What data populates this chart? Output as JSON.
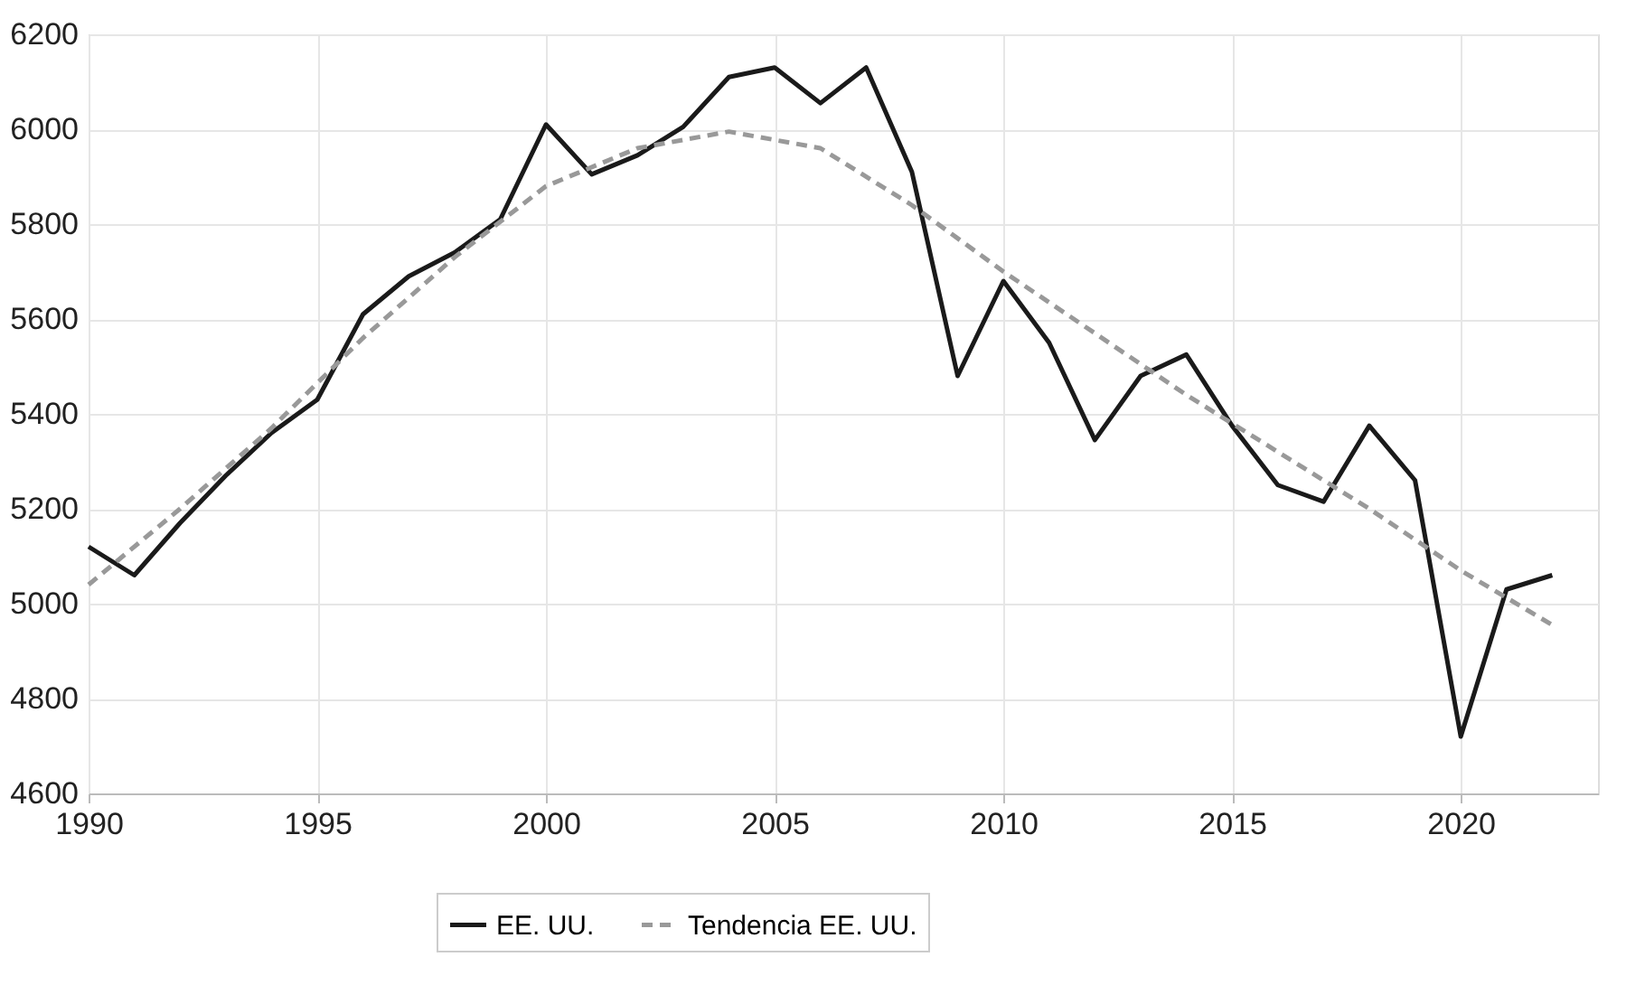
{
  "chart_data": {
    "type": "line",
    "x": [
      1990,
      1991,
      1992,
      1993,
      1994,
      1995,
      1996,
      1997,
      1998,
      1999,
      2000,
      2001,
      2002,
      2003,
      2004,
      2005,
      2006,
      2007,
      2008,
      2009,
      2010,
      2011,
      2012,
      2013,
      2014,
      2015,
      2016,
      2017,
      2018,
      2019,
      2020,
      2021,
      2022
    ],
    "series": [
      {
        "name": "EE. UU.",
        "color": "#1a1a1a",
        "line_style": "solid",
        "values": [
          5120,
          5060,
          5170,
          5270,
          5360,
          5430,
          5610,
          5690,
          5740,
          5810,
          6010,
          5905,
          5945,
          6005,
          6110,
          6130,
          6055,
          6130,
          5910,
          5480,
          5680,
          5550,
          5345,
          5480,
          5525,
          5375,
          5250,
          5215,
          5375,
          5260,
          4720,
          5030,
          5060
        ]
      },
      {
        "name": "Tendencia EE. UU.",
        "color": "#999999",
        "line_style": "dashed",
        "x": [
          1990,
          1992,
          1994,
          1996,
          1998,
          2000,
          2002,
          2004,
          2006,
          2008,
          2010,
          2012,
          2014,
          2016,
          2018,
          2020,
          2022
        ],
        "values": [
          5040,
          5200,
          5370,
          5560,
          5730,
          5880,
          5960,
          5995,
          5960,
          5840,
          5700,
          5570,
          5440,
          5320,
          5200,
          5070,
          4955
        ]
      }
    ],
    "xlim": [
      1990,
      2023
    ],
    "xticks": [
      1990,
      1995,
      2000,
      2005,
      2010,
      2015,
      2020
    ],
    "ylim": [
      4600,
      6200
    ],
    "yticks": [
      4600,
      4800,
      5000,
      5200,
      5400,
      5600,
      5800,
      6000,
      6200
    ],
    "grid": true,
    "legend": "bottom",
    "marker": "none"
  }
}
